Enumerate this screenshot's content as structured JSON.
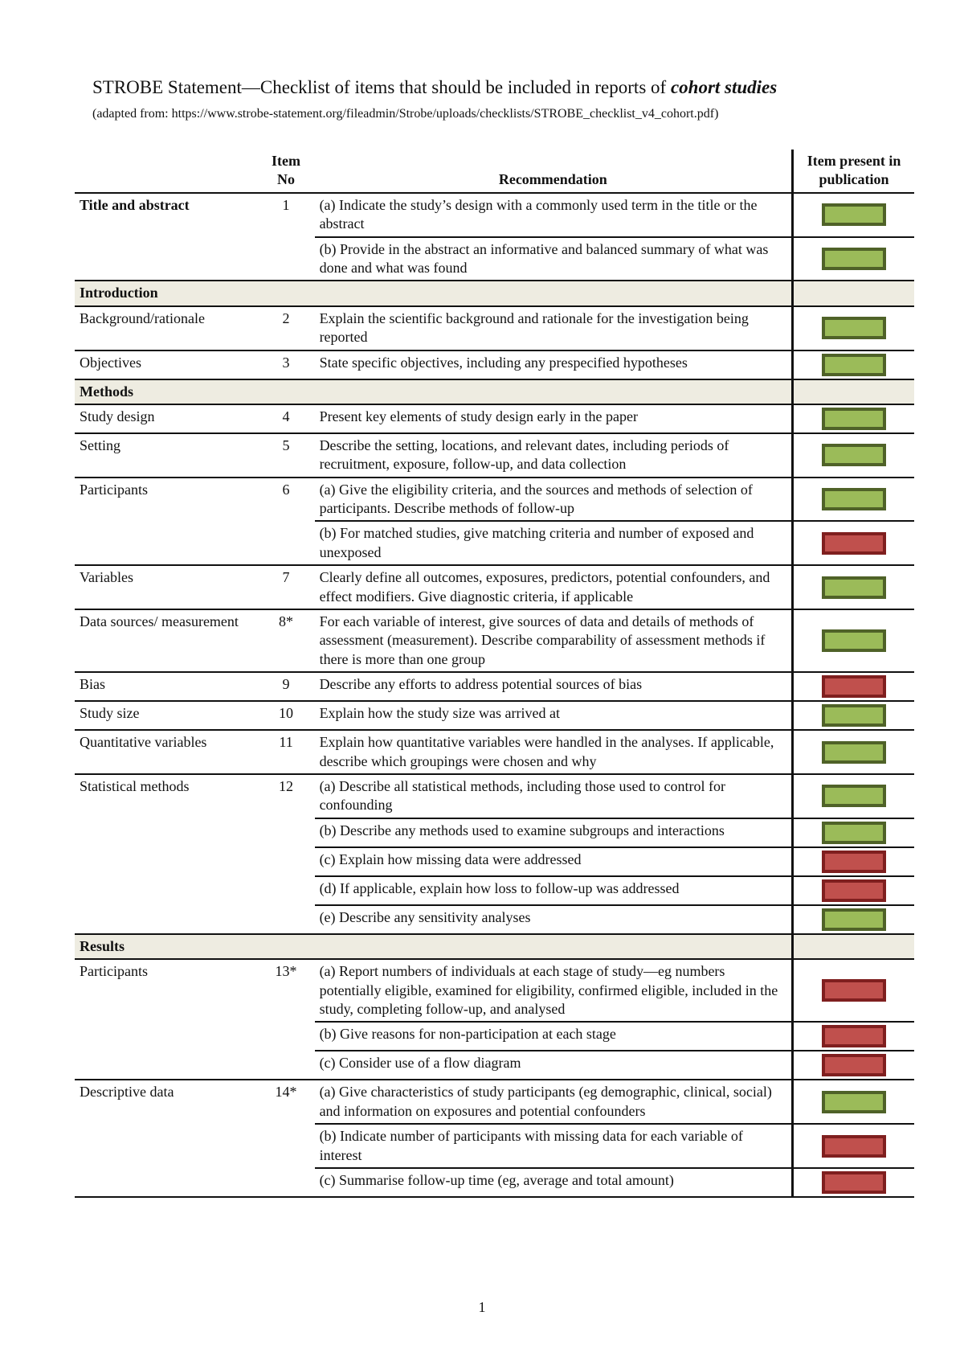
{
  "header": {
    "title": "STROBE Statement—Checklist of items that should be included in reports of ",
    "title_em": "cohort studies",
    "source": "(adapted from: https://www.strobe-statement.org/fileadmin/Strobe/uploads/checklists/STROBE_checklist_v4_cohort.pdf)"
  },
  "columns": {
    "item_no": "Item No",
    "recommendation": "Recommendation",
    "present": "Item present in publication"
  },
  "sections": [
    {
      "groups": [
        {
          "topic": "Title and abstract",
          "item": "1",
          "parts": [
            {
              "text": "(a) Indicate the study’s design with a commonly used term in the title or the abstract",
              "color": "#9bbb59"
            },
            {
              "text": "(b) Provide in the abstract an informative and balanced summary of what was done and what was found",
              "color": "#9bbb59"
            }
          ]
        }
      ]
    },
    {
      "title": "Introduction",
      "groups": [
        {
          "topic": "Background/rationale",
          "item": "2",
          "parts": [
            {
              "text": "Explain the scientific background and rationale for the investigation being reported",
              "color": "#9bbb59"
            }
          ]
        },
        {
          "topic": "Objectives",
          "item": "3",
          "parts": [
            {
              "text": "State specific objectives, including any prespecified hypotheses",
              "color": "#9bbb59"
            }
          ]
        }
      ]
    },
    {
      "title": "Methods",
      "groups": [
        {
          "topic": "Study design",
          "item": "4",
          "parts": [
            {
              "text": "Present key elements of study design early in the paper",
              "color": "#9bbb59"
            }
          ]
        },
        {
          "topic": "Setting",
          "item": "5",
          "parts": [
            {
              "text": "Describe the setting, locations, and relevant dates, including periods of recruitment, exposure, follow-up, and data collection",
              "color": "#9bbb59"
            }
          ]
        },
        {
          "topic": "Participants",
          "item": "6",
          "parts": [
            {
              "text": "(a) Give the eligibility criteria, and the sources and methods of selection of participants. Describe methods of follow-up",
              "color": "#9bbb59"
            },
            {
              "text": "(b) For matched studies, give matching criteria and number of exposed and unexposed",
              "color": "#c0504d"
            }
          ]
        },
        {
          "topic": "Variables",
          "item": "7",
          "parts": [
            {
              "text": "Clearly define all outcomes, exposures, predictors, potential confounders, and effect modifiers. Give diagnostic criteria, if applicable",
              "color": "#9bbb59"
            }
          ]
        },
        {
          "topic": "Data sources/ measurement",
          "item": "8*",
          "parts": [
            {
              "text": "For each variable of interest, give sources of data and details of methods of assessment (measurement). Describe comparability of assessment methods if there is more than one group",
              "color": "#9bbb59"
            }
          ]
        },
        {
          "topic": "Bias",
          "item": "9",
          "parts": [
            {
              "text": "Describe any efforts to address potential sources of bias",
              "color": "#c0504d"
            }
          ]
        },
        {
          "topic": "Study size",
          "item": "10",
          "parts": [
            {
              "text": "Explain how the study size was arrived at",
              "color": "#9bbb59"
            }
          ]
        },
        {
          "topic": "Quantitative variables",
          "item": "11",
          "parts": [
            {
              "text": "Explain how quantitative variables were handled in the analyses. If applicable, describe which groupings were chosen and why",
              "color": "#9bbb59"
            }
          ]
        },
        {
          "topic": "Statistical methods",
          "item": "12",
          "parts": [
            {
              "text": "(a) Describe all statistical methods, including those used to control for confounding",
              "color": "#9bbb59"
            },
            {
              "text": "(b) Describe any methods used to examine subgroups and interactions",
              "color": "#9bbb59"
            },
            {
              "text": "(c) Explain how missing data were addressed",
              "color": "#c0504d"
            },
            {
              "text": "(d) If applicable, explain how loss to follow-up was addressed",
              "color": "#c0504d"
            },
            {
              "text": "(e) Describe any sensitivity analyses",
              "color": "#9bbb59"
            }
          ]
        }
      ]
    },
    {
      "title": "Results",
      "groups": [
        {
          "topic": "Participants",
          "item": "13*",
          "parts": [
            {
              "text": "(a) Report numbers of individuals at each stage of study—eg numbers potentially eligible, examined for eligibility, confirmed eligible, included in the study, completing follow-up, and analysed",
              "color": "#c0504d"
            },
            {
              "text": "(b) Give reasons for non-participation at each stage",
              "color": "#c0504d"
            },
            {
              "text": "(c) Consider use of a flow diagram",
              "color": "#c0504d"
            }
          ]
        },
        {
          "topic": "Descriptive data",
          "item": "14*",
          "parts": [
            {
              "text": "(a) Give characteristics of study participants (eg demographic, clinical, social) and information on exposures and potential confounders",
              "color": "#9bbb59"
            },
            {
              "text": "(b) Indicate number of participants with missing data for each variable of interest",
              "color": "#c0504d"
            },
            {
              "text": "(c) Summarise follow-up time (eg, average and total amount)",
              "color": "#c0504d"
            }
          ]
        }
      ]
    }
  ],
  "footer": {
    "page": "1"
  }
}
